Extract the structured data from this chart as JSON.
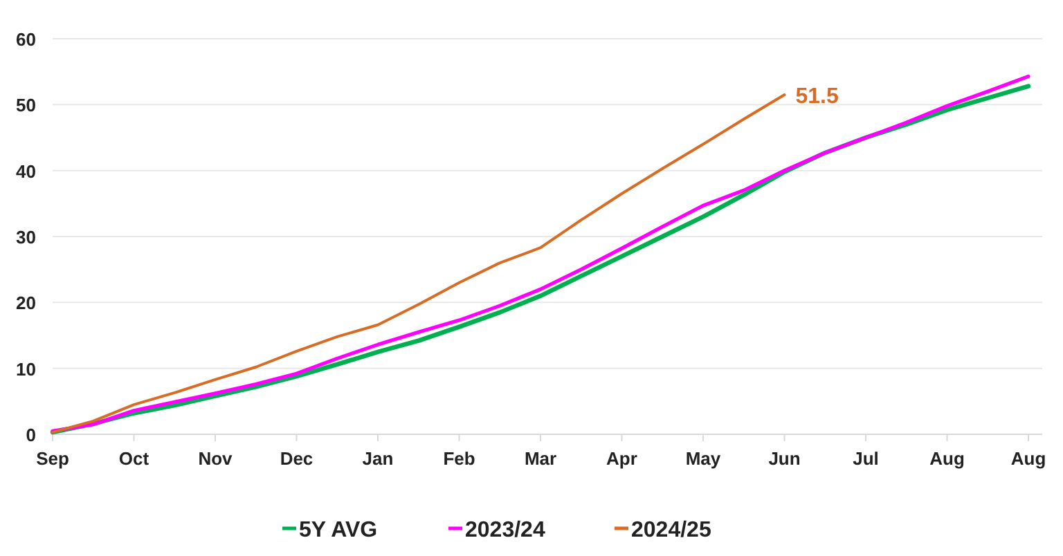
{
  "chart_data": {
    "type": "line",
    "categories": [
      "Sep",
      null,
      "Oct",
      null,
      "Nov",
      null,
      "Dec",
      null,
      "Jan",
      null,
      "Feb",
      null,
      "Mar",
      null,
      "Apr",
      null,
      "May",
      null,
      "Jun",
      null,
      "Jul",
      null,
      "Aug",
      null,
      "Aug"
    ],
    "ylim": [
      0,
      60
    ],
    "yticks": [
      0,
      10,
      20,
      30,
      40,
      50,
      60
    ],
    "grid": "y",
    "legend": "bottom",
    "line_style": "solid",
    "marker": "none",
    "series": [
      {
        "name": "5Y AVG",
        "color": "#00b050",
        "values": [
          0.3,
          1.6,
          3.2,
          4.4,
          5.8,
          7.2,
          8.8,
          10.6,
          12.5,
          14.2,
          16.3,
          18.5,
          21.0,
          24.0,
          27.0,
          30.0,
          33.0,
          36.3,
          39.8,
          42.7,
          45.0,
          47.0,
          49.2,
          51.0,
          52.8
        ]
      },
      {
        "name": "2023/24",
        "color": "#ff00ff",
        "values": [
          0.5,
          1.5,
          3.6,
          4.9,
          6.2,
          7.6,
          9.2,
          11.5,
          13.6,
          15.5,
          17.3,
          19.5,
          22.0,
          25.0,
          28.2,
          31.5,
          34.7,
          37,
          40,
          42.7,
          45,
          47.3,
          49.8,
          52.0,
          54.3
        ]
      },
      {
        "name": "2024/25",
        "color": "#d86c25",
        "values": [
          0.3,
          2,
          4.5,
          6.3,
          8.3,
          10.2,
          12.6,
          14.8,
          16.6,
          19.7,
          23.0,
          26,
          28.3,
          32.5,
          36.5,
          40.3,
          44,
          47.8,
          51.5,
          null,
          null,
          null,
          null,
          null,
          null
        ]
      }
    ],
    "annotations": [
      {
        "text": "51.5",
        "x": "Jun",
        "y": 51.5
      }
    ]
  }
}
